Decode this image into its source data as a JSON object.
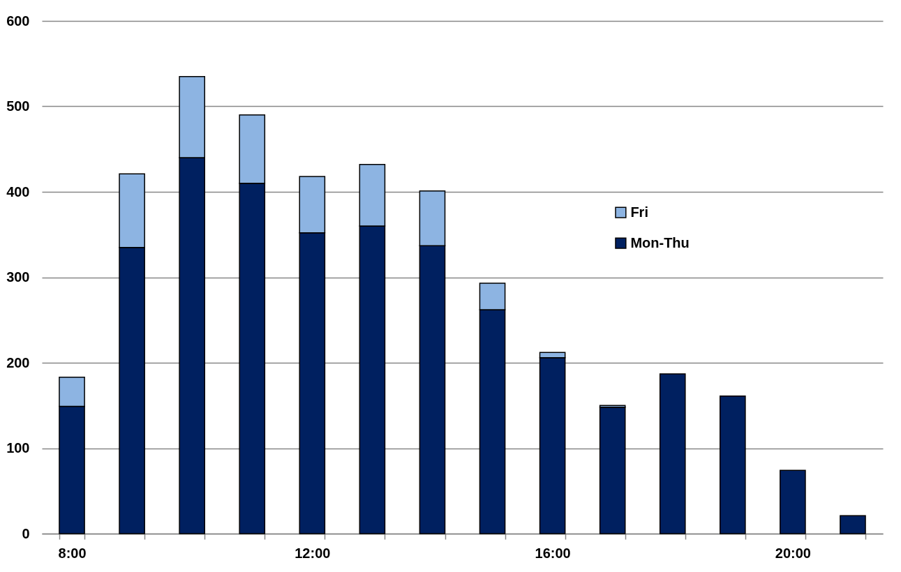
{
  "chart_data": {
    "type": "bar",
    "stacked": true,
    "categories": [
      "8:00",
      null,
      null,
      null,
      "12:00",
      null,
      null,
      null,
      "16:00",
      null,
      null,
      null,
      "20:00",
      null
    ],
    "series": [
      {
        "name": "Mon-Thu",
        "color": "#002060",
        "values": [
          149,
          335,
          440,
          410,
          352,
          360,
          337,
          262,
          206,
          148,
          187,
          161,
          74,
          21
        ]
      },
      {
        "name": "Fri",
        "color": "#8db4e2",
        "values": [
          34,
          86,
          95,
          80,
          66,
          72,
          64,
          31,
          6,
          2,
          null,
          null,
          null,
          null
        ]
      }
    ],
    "ylim": [
      0,
      600
    ],
    "yticks": [
      0,
      100,
      200,
      300,
      400,
      500,
      600
    ],
    "grid": "y",
    "legend": "right"
  }
}
